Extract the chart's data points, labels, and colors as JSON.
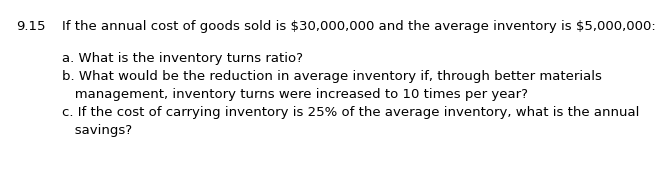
{
  "number": "9.15",
  "header": "If the annual cost of goods sold is $30,000,000 and the average inventory is $5,000,000:",
  "line1": "a. What is the inventory turns ratio?",
  "line2": "b. What would be the reduction in average inventory if, through better materials",
  "line3": "   management, inventory turns were increased to 10 times per year?",
  "line4": "c. If the cost of carrying inventory is 25% of the average inventory, what is the annual",
  "line5": "   savings?",
  "font_size": 9.5,
  "text_color": "#000000",
  "background_color": "#ffffff"
}
